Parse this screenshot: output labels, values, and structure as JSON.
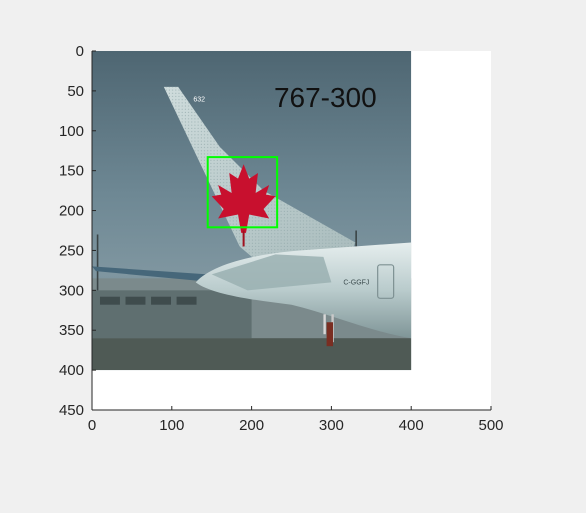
{
  "figure": {
    "background_color": "#f0f0f0",
    "axes_background_color": "#ffffff",
    "axis_color": "#262626"
  },
  "chart_data": {
    "type": "image",
    "xlim": [
      0,
      500
    ],
    "ylim": [
      450,
      0
    ],
    "y_direction": "reversed",
    "xticks": [
      0,
      100,
      200,
      300,
      400,
      500
    ],
    "yticks": [
      0,
      50,
      100,
      150,
      200,
      250,
      300,
      350,
      400,
      450
    ],
    "xtick_labels": [
      "0",
      "100",
      "200",
      "300",
      "400",
      "500"
    ],
    "ytick_labels": [
      "0",
      "50",
      "100",
      "150",
      "200",
      "250",
      "300",
      "350",
      "400",
      "450"
    ],
    "grid": false,
    "image_extent": {
      "x": [
        0,
        400
      ],
      "y": [
        0,
        400
      ]
    },
    "image_description_icon": "airplane-tail-photo",
    "image_annotation": "767-300",
    "registration_text": "C-GGFJ",
    "tail_number_text": "632",
    "bounding_box": {
      "label": "maple-leaf-logo",
      "x_range": [
        145,
        232
      ],
      "y_range": [
        133,
        221
      ],
      "color": "#00ff00"
    }
  }
}
